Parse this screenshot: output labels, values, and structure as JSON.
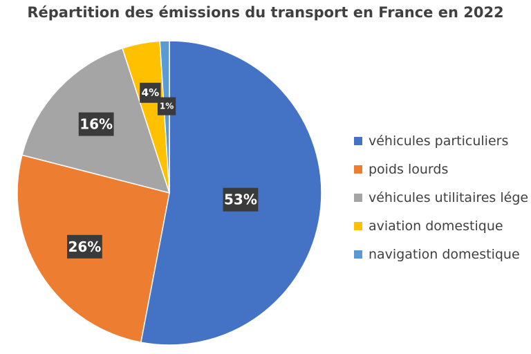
{
  "chart_data": {
    "type": "pie",
    "title": "Répartition des émissions du transport en France en 2022",
    "categories": [
      "véhicules particuliers",
      "poids lourds",
      "véhicules utilitaires légers",
      "aviation domestique",
      "navigation domestique"
    ],
    "legend_labels": [
      "véhicules particuliers",
      "poids lourds",
      "véhicules utilitaires lége",
      "aviation domestique",
      "navigation domestique"
    ],
    "values": [
      53,
      26,
      16,
      4,
      1
    ],
    "data_labels": [
      "53%",
      "26%",
      "16%",
      "4%",
      "1%"
    ],
    "colors": [
      "#4472c4",
      "#ed7d31",
      "#a5a5a5",
      "#ffc000",
      "#5b9bd5"
    ],
    "legend_position": "right",
    "start_angle_deg": 0,
    "direction": "clockwise"
  }
}
